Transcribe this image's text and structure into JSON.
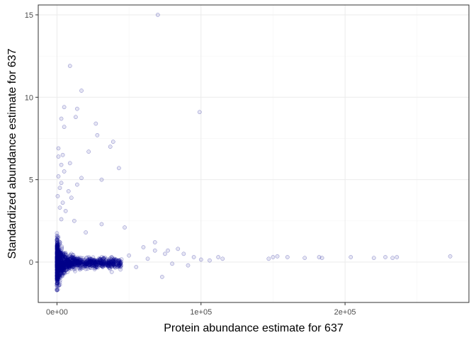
{
  "chart_data": {
    "type": "scatter",
    "title": "",
    "xlabel": "Protein abundance estimate for 637",
    "ylabel": "Standardized abundance estimate for 637",
    "xlim": [
      -13000,
      286000
    ],
    "ylim": [
      -2.45,
      15.6
    ],
    "x_ticks": [
      {
        "value": 0,
        "label": "0e+00"
      },
      {
        "value": 100000,
        "label": "1e+05"
      },
      {
        "value": 200000,
        "label": "2e+05"
      }
    ],
    "y_ticks": [
      {
        "value": 0,
        "label": "0"
      },
      {
        "value": 5,
        "label": "5"
      },
      {
        "value": 10,
        "label": "10"
      },
      {
        "value": 15,
        "label": "15"
      }
    ],
    "x_minor": [
      50000,
      150000,
      250000
    ],
    "y_minor": [
      2.5,
      7.5,
      12.5
    ],
    "grid": true,
    "legend": "none",
    "point_color": "#00008B",
    "point_fill_opacity": 0.1,
    "points": [
      [
        70000,
        15.0
      ],
      [
        9000,
        11.9
      ],
      [
        17000,
        10.4
      ],
      [
        5000,
        9.4
      ],
      [
        14000,
        9.3
      ],
      [
        99000,
        9.1
      ],
      [
        3000,
        8.7
      ],
      [
        13000,
        8.8
      ],
      [
        5000,
        8.2
      ],
      [
        27000,
        8.4
      ],
      [
        28000,
        7.7
      ],
      [
        39000,
        7.3
      ],
      [
        37000,
        7.0
      ],
      [
        1000,
        6.9
      ],
      [
        22000,
        6.7
      ],
      [
        1000,
        6.4
      ],
      [
        4000,
        6.5
      ],
      [
        9000,
        6.0
      ],
      [
        3000,
        5.9
      ],
      [
        5000,
        5.5
      ],
      [
        43000,
        5.7
      ],
      [
        31000,
        5.0
      ],
      [
        17000,
        5.1
      ],
      [
        1000,
        5.2
      ],
      [
        3000,
        4.8
      ],
      [
        14000,
        4.7
      ],
      [
        8000,
        4.3
      ],
      [
        2000,
        4.5
      ],
      [
        500,
        4.0
      ],
      [
        4000,
        3.6
      ],
      [
        10000,
        3.9
      ],
      [
        6000,
        3.1
      ],
      [
        2000,
        3.3
      ],
      [
        3000,
        2.6
      ],
      [
        12000,
        2.5
      ],
      [
        31000,
        2.3
      ],
      [
        47000,
        2.1
      ],
      [
        20000,
        1.8
      ],
      [
        68000,
        1.2
      ],
      [
        60000,
        0.9
      ],
      [
        84000,
        0.8
      ],
      [
        68000,
        0.7
      ],
      [
        77000,
        0.7
      ],
      [
        75000,
        0.5
      ],
      [
        50000,
        0.4
      ],
      [
        95000,
        0.3
      ],
      [
        112000,
        0.3
      ],
      [
        115000,
        0.2
      ],
      [
        100000,
        0.15
      ],
      [
        106000,
        0.1
      ],
      [
        80000,
        -0.1
      ],
      [
        91000,
        -0.2
      ],
      [
        73000,
        -0.9
      ],
      [
        43000,
        -0.2
      ],
      [
        38000,
        -0.6
      ],
      [
        55000,
        -0.3
      ],
      [
        63000,
        0.2
      ],
      [
        88000,
        0.5
      ],
      [
        147000,
        0.2
      ],
      [
        150000,
        0.3
      ],
      [
        153000,
        0.35
      ],
      [
        160000,
        0.3
      ],
      [
        172000,
        0.25
      ],
      [
        182000,
        0.3
      ],
      [
        184000,
        0.25
      ],
      [
        204000,
        0.3
      ],
      [
        220000,
        0.25
      ],
      [
        228000,
        0.3
      ],
      [
        233000,
        0.25
      ],
      [
        236000,
        0.3
      ],
      [
        273000,
        0.35
      ]
    ]
  }
}
